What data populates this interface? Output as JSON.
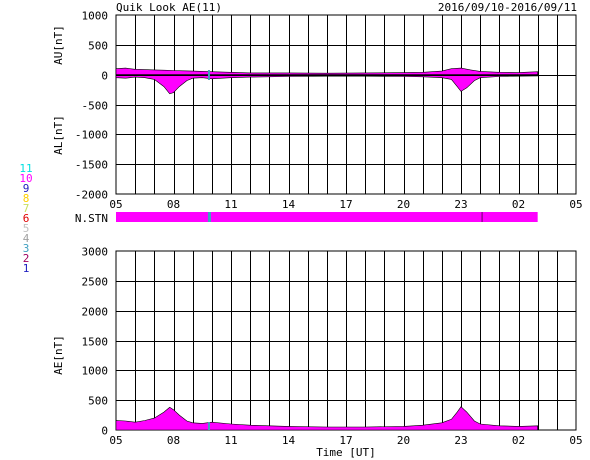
{
  "header": {
    "title": "Quik Look AE(11)",
    "date_range": "2016/09/10-2016/09/11"
  },
  "stations": {
    "label": "N.STN",
    "codes": [
      {
        "code": "11",
        "color": "#00e0e0"
      },
      {
        "code": "10",
        "color": "#ff00ff"
      },
      {
        "code": "9",
        "color": "#2020c0"
      },
      {
        "code": "8",
        "color": "#ffd000"
      },
      {
        "code": "7",
        "color": "#c8e060"
      },
      {
        "code": "6",
        "color": "#e00000"
      },
      {
        "code": "5",
        "color": "#c0c0c0"
      },
      {
        "code": "4",
        "color": "#a0a0a0"
      },
      {
        "code": "3",
        "color": "#40a0c0"
      },
      {
        "code": "2",
        "color": "#a00060"
      },
      {
        "code": "1",
        "color": "#2020c0"
      }
    ],
    "bar_color": "#ff00ff",
    "marker_color": "#40a0c0",
    "marker_hour": 9.85,
    "bar_end_hour": 27.0,
    "dark_tick_hour": 24.1
  },
  "chart_data": [
    {
      "type": "area",
      "panel": "AU/AL",
      "upper_label": "AU[nT]",
      "lower_label": "AL[nT]",
      "ylim": [
        -2000,
        1000
      ],
      "yticks": [
        "1000",
        "500",
        "0",
        "-500",
        "-1000",
        "-1500",
        "-2000"
      ],
      "xticks": [
        "05",
        "08",
        "11",
        "14",
        "17",
        "20",
        "23",
        "02",
        "05"
      ],
      "xlim_hours": [
        5,
        29
      ],
      "grid": true,
      "fill_color": "#ff00ff",
      "data_end_hour": 27.0,
      "series": [
        {
          "name": "AU",
          "hours": [
            5.0,
            5.5,
            6.0,
            6.5,
            7.0,
            7.5,
            8.0,
            8.5,
            9.0,
            10.0,
            11.0,
            12.0,
            14.0,
            16.0,
            18.0,
            20.0,
            21.0,
            22.0,
            22.5,
            23.0,
            23.5,
            24.0,
            25.0,
            26.0,
            27.0
          ],
          "values": [
            100,
            110,
            90,
            85,
            80,
            75,
            70,
            65,
            60,
            50,
            40,
            30,
            30,
            25,
            30,
            35,
            40,
            60,
            100,
            110,
            80,
            55,
            40,
            35,
            50
          ]
        },
        {
          "name": "AL",
          "hours": [
            5.0,
            5.5,
            6.0,
            6.5,
            7.0,
            7.5,
            7.8,
            8.0,
            8.3,
            8.7,
            9.0,
            9.5,
            10.0,
            11.0,
            12.0,
            14.0,
            16.0,
            18.0,
            20.0,
            21.0,
            22.0,
            22.5,
            22.8,
            23.0,
            23.3,
            23.7,
            24.0,
            25.0,
            26.0,
            27.0
          ],
          "values": [
            -50,
            -60,
            -40,
            -50,
            -80,
            -200,
            -320,
            -300,
            -200,
            -100,
            -60,
            -50,
            -70,
            -50,
            -40,
            -30,
            -25,
            -25,
            -30,
            -35,
            -50,
            -80,
            -200,
            -280,
            -220,
            -100,
            -50,
            -30,
            -25,
            -20
          ]
        }
      ]
    },
    {
      "type": "area",
      "panel": "AE",
      "ylabel": "AE[nT]",
      "xlabel": "Time [UT]",
      "ylim": [
        0,
        3000
      ],
      "yticks": [
        "3000",
        "2500",
        "2000",
        "1500",
        "1000",
        "500",
        "0"
      ],
      "xticks": [
        "05",
        "08",
        "11",
        "14",
        "17",
        "20",
        "23",
        "02",
        "05"
      ],
      "xlim_hours": [
        5,
        29
      ],
      "grid": true,
      "fill_color": "#ff00ff",
      "data_end_hour": 27.0,
      "series": [
        {
          "name": "AE",
          "hours": [
            5.0,
            5.5,
            6.0,
            6.5,
            7.0,
            7.5,
            7.8,
            8.0,
            8.3,
            8.7,
            9.0,
            9.5,
            10.0,
            11.0,
            12.0,
            13.0,
            14.0,
            16.0,
            18.0,
            20.0,
            21.0,
            22.0,
            22.5,
            22.8,
            23.0,
            23.3,
            23.7,
            24.0,
            25.0,
            26.0,
            27.0
          ],
          "values": [
            160,
            150,
            130,
            160,
            200,
            300,
            380,
            340,
            250,
            150,
            120,
            110,
            130,
            100,
            80,
            70,
            60,
            50,
            50,
            60,
            80,
            120,
            180,
            300,
            390,
            300,
            150,
            100,
            70,
            60,
            70
          ]
        }
      ]
    }
  ]
}
